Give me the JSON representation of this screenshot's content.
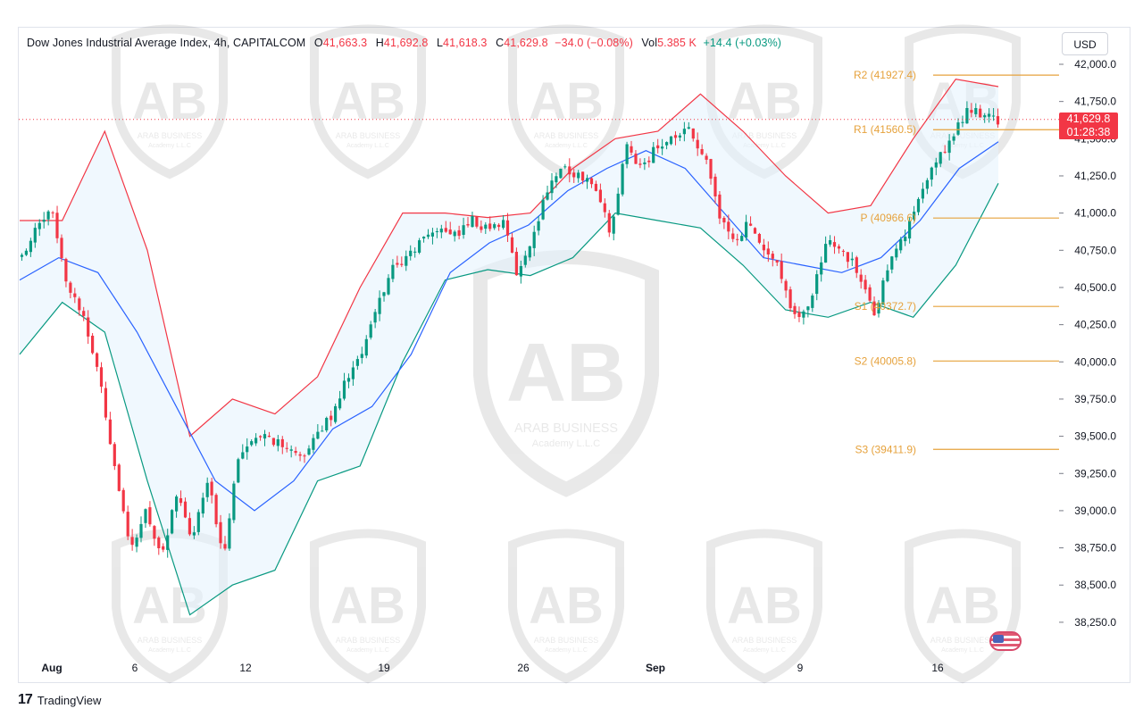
{
  "header": {
    "symbol": "Dow Jones Industrial Average Index, 4h, CAPITALCOM",
    "o_label": "O",
    "o_value": "41,663.3",
    "h_label": "H",
    "h_value": "41,692.8",
    "l_label": "L",
    "l_value": "41,618.3",
    "c_label": "C",
    "c_value": "41,629.8",
    "change": "−34.0 (−0.08%)",
    "vol_label": "Vol",
    "vol_value": "5.385 K",
    "vol_change": "+14.4 (+0.03%)"
  },
  "currency_button": "USD",
  "price_tag": {
    "price": "41,629.8",
    "countdown": "01:28:38"
  },
  "watermark": {
    "line1": "ARAB BUSINESS",
    "line2": "Academy L.L.C"
  },
  "footer": {
    "logo": "17",
    "brand": "TradingView"
  },
  "colors": {
    "up": "#089981",
    "down": "#f23645",
    "ma": "#2962ff",
    "upper_band": "#f23645",
    "lower_band": "#089981",
    "band_fill": "#e3f2fd",
    "pivot": "#e6a23c"
  },
  "chart_data": {
    "type": "candlestick",
    "title": "Dow Jones Industrial Average Index, 4h, CAPITALCOM",
    "ylim": [
      38100,
      42050
    ],
    "y_ticks": [
      "42,000.0",
      "41,750.0",
      "41,500.0",
      "41,250.0",
      "41,000.0",
      "40,750.0",
      "40,500.0",
      "40,250.0",
      "40,000.0",
      "39,750.0",
      "39,500.0",
      "39,250.0",
      "39,000.0",
      "38,750.0",
      "38,500.0",
      "38,250.0"
    ],
    "x_ticks": [
      "Aug",
      "6",
      "12",
      "19",
      "26",
      "Sep",
      "9",
      "16"
    ],
    "last_price": 41629.8,
    "close_path": [
      40700,
      40950,
      41000,
      40500,
      40300,
      39900,
      39300,
      38700,
      39000,
      38700,
      39100,
      38800,
      39200,
      38700,
      39400,
      39450,
      39500,
      39400,
      39350,
      39500,
      39650,
      39900,
      40050,
      40400,
      40650,
      40700,
      40850,
      40900,
      40850,
      40950,
      40900,
      40950,
      40580,
      40850,
      41200,
      41300,
      41250,
      41200,
      40850,
      41450,
      41300,
      41450,
      41500,
      41550,
      41400,
      41000,
      40800,
      40950,
      40750,
      40600,
      40250,
      40450,
      40800,
      40750,
      40600,
      40300,
      40700,
      40850,
      41100,
      41350,
      41500,
      41700,
      41650,
      41630
    ],
    "bollinger": {
      "ma": [
        40550,
        40700,
        40600,
        40200,
        39700,
        39200,
        39000,
        39200,
        39550,
        39700,
        40050,
        40600,
        40800,
        40920,
        41150,
        41300,
        41420,
        41300,
        41000,
        40700,
        40650,
        40600,
        40700,
        40950,
        41300,
        41480
      ],
      "upper": [
        40950,
        40950,
        41550,
        40750,
        39500,
        39750,
        39650,
        39900,
        40500,
        41000,
        41000,
        40970,
        41000,
        41300,
        41500,
        41550,
        41800,
        41550,
        41250,
        41000,
        41050,
        41500,
        41900,
        41850
      ],
      "lower": [
        40050,
        40400,
        40200,
        39200,
        38300,
        38500,
        38600,
        39200,
        39300,
        40000,
        40550,
        40620,
        40580,
        40700,
        41000,
        40950,
        40900,
        40650,
        40350,
        40300,
        40400,
        40300,
        40650,
        41200
      ]
    },
    "levels": [
      {
        "name": "R2",
        "label": "R2 (41927.4)",
        "value": 41927.4
      },
      {
        "name": "R1",
        "label": "R1 (41560.5)",
        "value": 41560.5
      },
      {
        "name": "P",
        "label": "P (40966.6)",
        "value": 40966.6
      },
      {
        "name": "S1",
        "label": "S1 (40372.7)",
        "value": 40372.7
      },
      {
        "name": "S2",
        "label": "S2 (40005.8)",
        "value": 40005.8
      },
      {
        "name": "S3",
        "label": "S3 (39411.9)",
        "value": 39411.9
      }
    ],
    "legend_position": "top-left",
    "grid": false
  }
}
